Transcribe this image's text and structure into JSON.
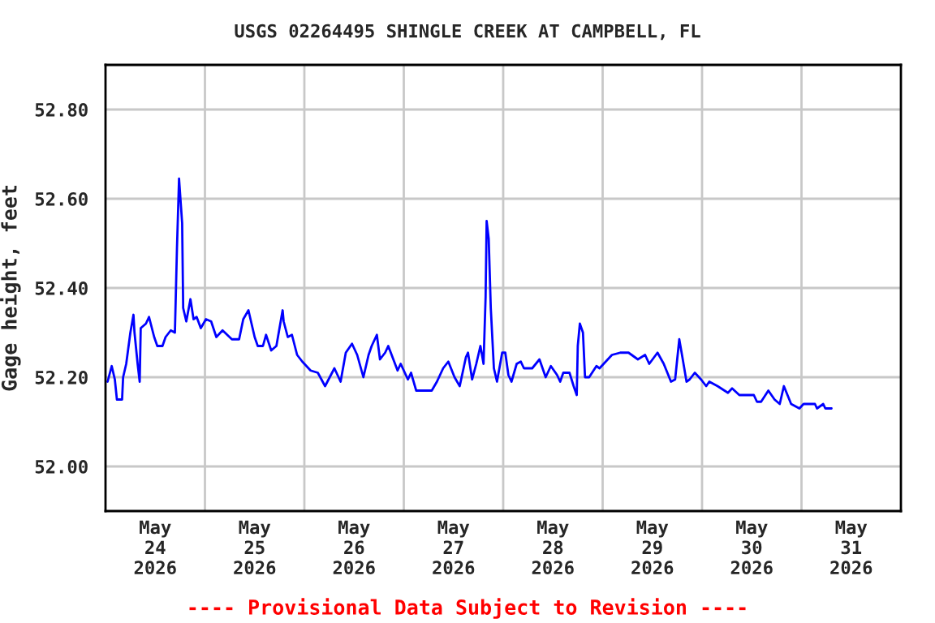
{
  "chart_data": {
    "type": "line",
    "title": "USGS 02264495 SHINGLE CREEK AT CAMPBELL, FL",
    "ylabel": "Gage height, feet",
    "annotations": [
      "---- Provisional Data Subject to Revision ----"
    ],
    "x": [
      "2026-05-24T00:30",
      "2026-05-24T01:30",
      "2026-05-24T02:15",
      "2026-05-24T02:45",
      "2026-05-24T04:00",
      "2026-05-24T04:15",
      "2026-05-24T05:00",
      "2026-05-24T06:00",
      "2026-05-24T06:45",
      "2026-05-24T07:00",
      "2026-05-24T07:45",
      "2026-05-24T08:15",
      "2026-05-24T08:30",
      "2026-05-24T09:45",
      "2026-05-24T10:30",
      "2026-05-24T11:45",
      "2026-05-24T12:30",
      "2026-05-24T13:45",
      "2026-05-24T14:30",
      "2026-05-24T15:45",
      "2026-05-24T16:45",
      "2026-05-24T17:15",
      "2026-05-24T17:45",
      "2026-05-24T18:30",
      "2026-05-24T18:45",
      "2026-05-24T19:30",
      "2026-05-24T20:30",
      "2026-05-24T21:15",
      "2026-05-24T22:00",
      "2026-05-24T23:00",
      "2026-05-25T00:15",
      "2026-05-25T01:30",
      "2026-05-25T02:45",
      "2026-05-25T04:15",
      "2026-05-25T06:30",
      "2026-05-25T08:15",
      "2026-05-25T09:15",
      "2026-05-25T10:30",
      "2026-05-25T12:00",
      "2026-05-25T12:45",
      "2026-05-25T14:00",
      "2026-05-25T14:45",
      "2026-05-25T16:00",
      "2026-05-25T17:15",
      "2026-05-25T18:45",
      "2026-05-25T19:00",
      "2026-05-25T20:00",
      "2026-05-25T21:00",
      "2026-05-25T22:15",
      "2026-05-25T23:30",
      "2026-05-26T01:30",
      "2026-05-26T03:15",
      "2026-05-26T05:00",
      "2026-05-26T07:15",
      "2026-05-26T08:45",
      "2026-05-26T10:00",
      "2026-05-26T11:30",
      "2026-05-26T12:45",
      "2026-05-26T14:15",
      "2026-05-26T15:30",
      "2026-05-26T16:15",
      "2026-05-26T17:30",
      "2026-05-26T18:15",
      "2026-05-26T19:30",
      "2026-05-26T20:15",
      "2026-05-26T22:30",
      "2026-05-26T23:15",
      "2026-05-27T01:00",
      "2026-05-27T01:45",
      "2026-05-27T03:00",
      "2026-05-27T06:45",
      "2026-05-27T08:00",
      "2026-05-27T09:30",
      "2026-05-27T10:45",
      "2026-05-27T12:15",
      "2026-05-27T13:30",
      "2026-05-27T15:00",
      "2026-05-27T15:30",
      "2026-05-27T16:30",
      "2026-05-27T17:30",
      "2026-05-27T18:30",
      "2026-05-27T19:15",
      "2026-05-27T19:45",
      "2026-05-27T20:00",
      "2026-05-27T20:30",
      "2026-05-27T21:00",
      "2026-05-27T21:45",
      "2026-05-27T22:30",
      "2026-05-27T23:45",
      "2026-05-28T00:30",
      "2026-05-28T01:15",
      "2026-05-28T02:00",
      "2026-05-28T03:15",
      "2026-05-28T04:15",
      "2026-05-28T05:00",
      "2026-05-28T07:00",
      "2026-05-28T08:45",
      "2026-05-28T10:15",
      "2026-05-28T11:30",
      "2026-05-28T13:00",
      "2026-05-28T13:45",
      "2026-05-28T14:30",
      "2026-05-28T16:00",
      "2026-05-28T17:00",
      "2026-05-28T17:45",
      "2026-05-28T18:00",
      "2026-05-28T18:30",
      "2026-05-28T19:15",
      "2026-05-28T19:45",
      "2026-05-28T20:45",
      "2026-05-28T22:30",
      "2026-05-28T23:15",
      "2026-05-29T02:15",
      "2026-05-29T04:15",
      "2026-05-29T06:15",
      "2026-05-29T08:30",
      "2026-05-29T10:15",
      "2026-05-29T11:15",
      "2026-05-29T13:15",
      "2026-05-29T14:45",
      "2026-05-29T16:30",
      "2026-05-29T17:30",
      "2026-05-29T18:30",
      "2026-05-29T19:15",
      "2026-05-29T20:15",
      "2026-05-29T21:00",
      "2026-05-29T22:15",
      "2026-05-29T23:45",
      "2026-05-30T01:00",
      "2026-05-30T01:45",
      "2026-05-30T03:45",
      "2026-05-30T06:15",
      "2026-05-30T07:15",
      "2026-05-30T09:00",
      "2026-05-30T12:30",
      "2026-05-30T13:15",
      "2026-05-30T14:15",
      "2026-05-30T16:00",
      "2026-05-30T17:30",
      "2026-05-30T18:45",
      "2026-05-30T19:45",
      "2026-05-30T21:30",
      "2026-05-30T23:30",
      "2026-05-31T00:30",
      "2026-05-31T03:15",
      "2026-05-31T03:45",
      "2026-05-31T05:15",
      "2026-05-31T05:45",
      "2026-05-31T07:15"
    ],
    "series": [
      {
        "color": "#0000ff",
        "values": [
          52.19,
          52.225,
          52.195,
          52.15,
          52.15,
          52.2,
          52.23,
          52.3,
          52.34,
          52.3,
          52.23,
          52.19,
          52.31,
          52.32,
          52.335,
          52.29,
          52.27,
          52.27,
          52.29,
          52.305,
          52.3,
          52.49,
          52.645,
          52.545,
          52.355,
          52.325,
          52.375,
          52.33,
          52.335,
          52.31,
          52.33,
          52.325,
          52.29,
          52.305,
          52.285,
          52.285,
          52.33,
          52.35,
          52.29,
          52.27,
          52.27,
          52.295,
          52.26,
          52.27,
          52.35,
          52.325,
          52.29,
          52.295,
          52.25,
          52.235,
          52.215,
          52.21,
          52.18,
          52.22,
          52.19,
          52.255,
          52.275,
          52.25,
          52.2,
          52.25,
          52.27,
          52.295,
          52.24,
          52.255,
          52.27,
          52.215,
          52.23,
          52.195,
          52.21,
          52.17,
          52.17,
          52.19,
          52.22,
          52.235,
          52.2,
          52.18,
          52.245,
          52.255,
          52.195,
          52.23,
          52.27,
          52.23,
          52.38,
          52.55,
          52.51,
          52.355,
          52.22,
          52.19,
          52.255,
          52.255,
          52.205,
          52.19,
          52.23,
          52.235,
          52.22,
          52.22,
          52.24,
          52.2,
          52.225,
          52.205,
          52.19,
          52.21,
          52.21,
          52.18,
          52.16,
          52.27,
          52.32,
          52.3,
          52.2,
          52.2,
          52.225,
          52.22,
          52.25,
          52.255,
          52.255,
          52.24,
          52.25,
          52.23,
          52.255,
          52.23,
          52.19,
          52.195,
          52.285,
          52.245,
          52.19,
          52.195,
          52.21,
          52.195,
          52.18,
          52.19,
          52.18,
          52.165,
          52.175,
          52.16,
          52.16,
          52.145,
          52.145,
          52.17,
          52.15,
          52.14,
          52.18,
          52.14,
          52.13,
          52.14,
          52.14,
          52.13,
          52.14,
          52.13,
          52.13
        ]
      }
    ],
    "xlim": [
      "2026-05-24T00:00",
      "2026-06-01T00:00"
    ],
    "xticks": [
      {
        "value": "2026-05-24T12:00",
        "label": "May\n24\n2026"
      },
      {
        "value": "2026-05-25T12:00",
        "label": "May\n25\n2026"
      },
      {
        "value": "2026-05-26T12:00",
        "label": "May\n26\n2026"
      },
      {
        "value": "2026-05-27T12:00",
        "label": "May\n27\n2026"
      },
      {
        "value": "2026-05-28T12:00",
        "label": "May\n28\n2026"
      },
      {
        "value": "2026-05-29T12:00",
        "label": "May\n29\n2026"
      },
      {
        "value": "2026-05-30T12:00",
        "label": "May\n30\n2026"
      },
      {
        "value": "2026-05-31T12:00",
        "label": "May\n31\n2026"
      },
      {
        "value": "2026-05-25T00:00",
        "label": null
      },
      {
        "value": "2026-05-26T00:00",
        "label": null
      },
      {
        "value": "2026-05-27T00:00",
        "label": null
      },
      {
        "value": "2026-05-28T00:00",
        "label": null
      },
      {
        "value": "2026-05-29T00:00",
        "label": null
      },
      {
        "value": "2026-05-30T00:00",
        "label": null
      },
      {
        "value": "2026-05-31T00:00",
        "label": null
      }
    ],
    "ylim": [
      51.9,
      52.9
    ],
    "yticks": [
      {
        "value": 52.0,
        "label": "52.00"
      },
      {
        "value": 52.2,
        "label": "52.20"
      },
      {
        "value": 52.4,
        "label": "52.40"
      },
      {
        "value": 52.6,
        "label": "52.60"
      },
      {
        "value": 52.8,
        "label": "52.80"
      }
    ],
    "grid": true,
    "legend": false,
    "marker": "none",
    "line_style": "solid"
  }
}
